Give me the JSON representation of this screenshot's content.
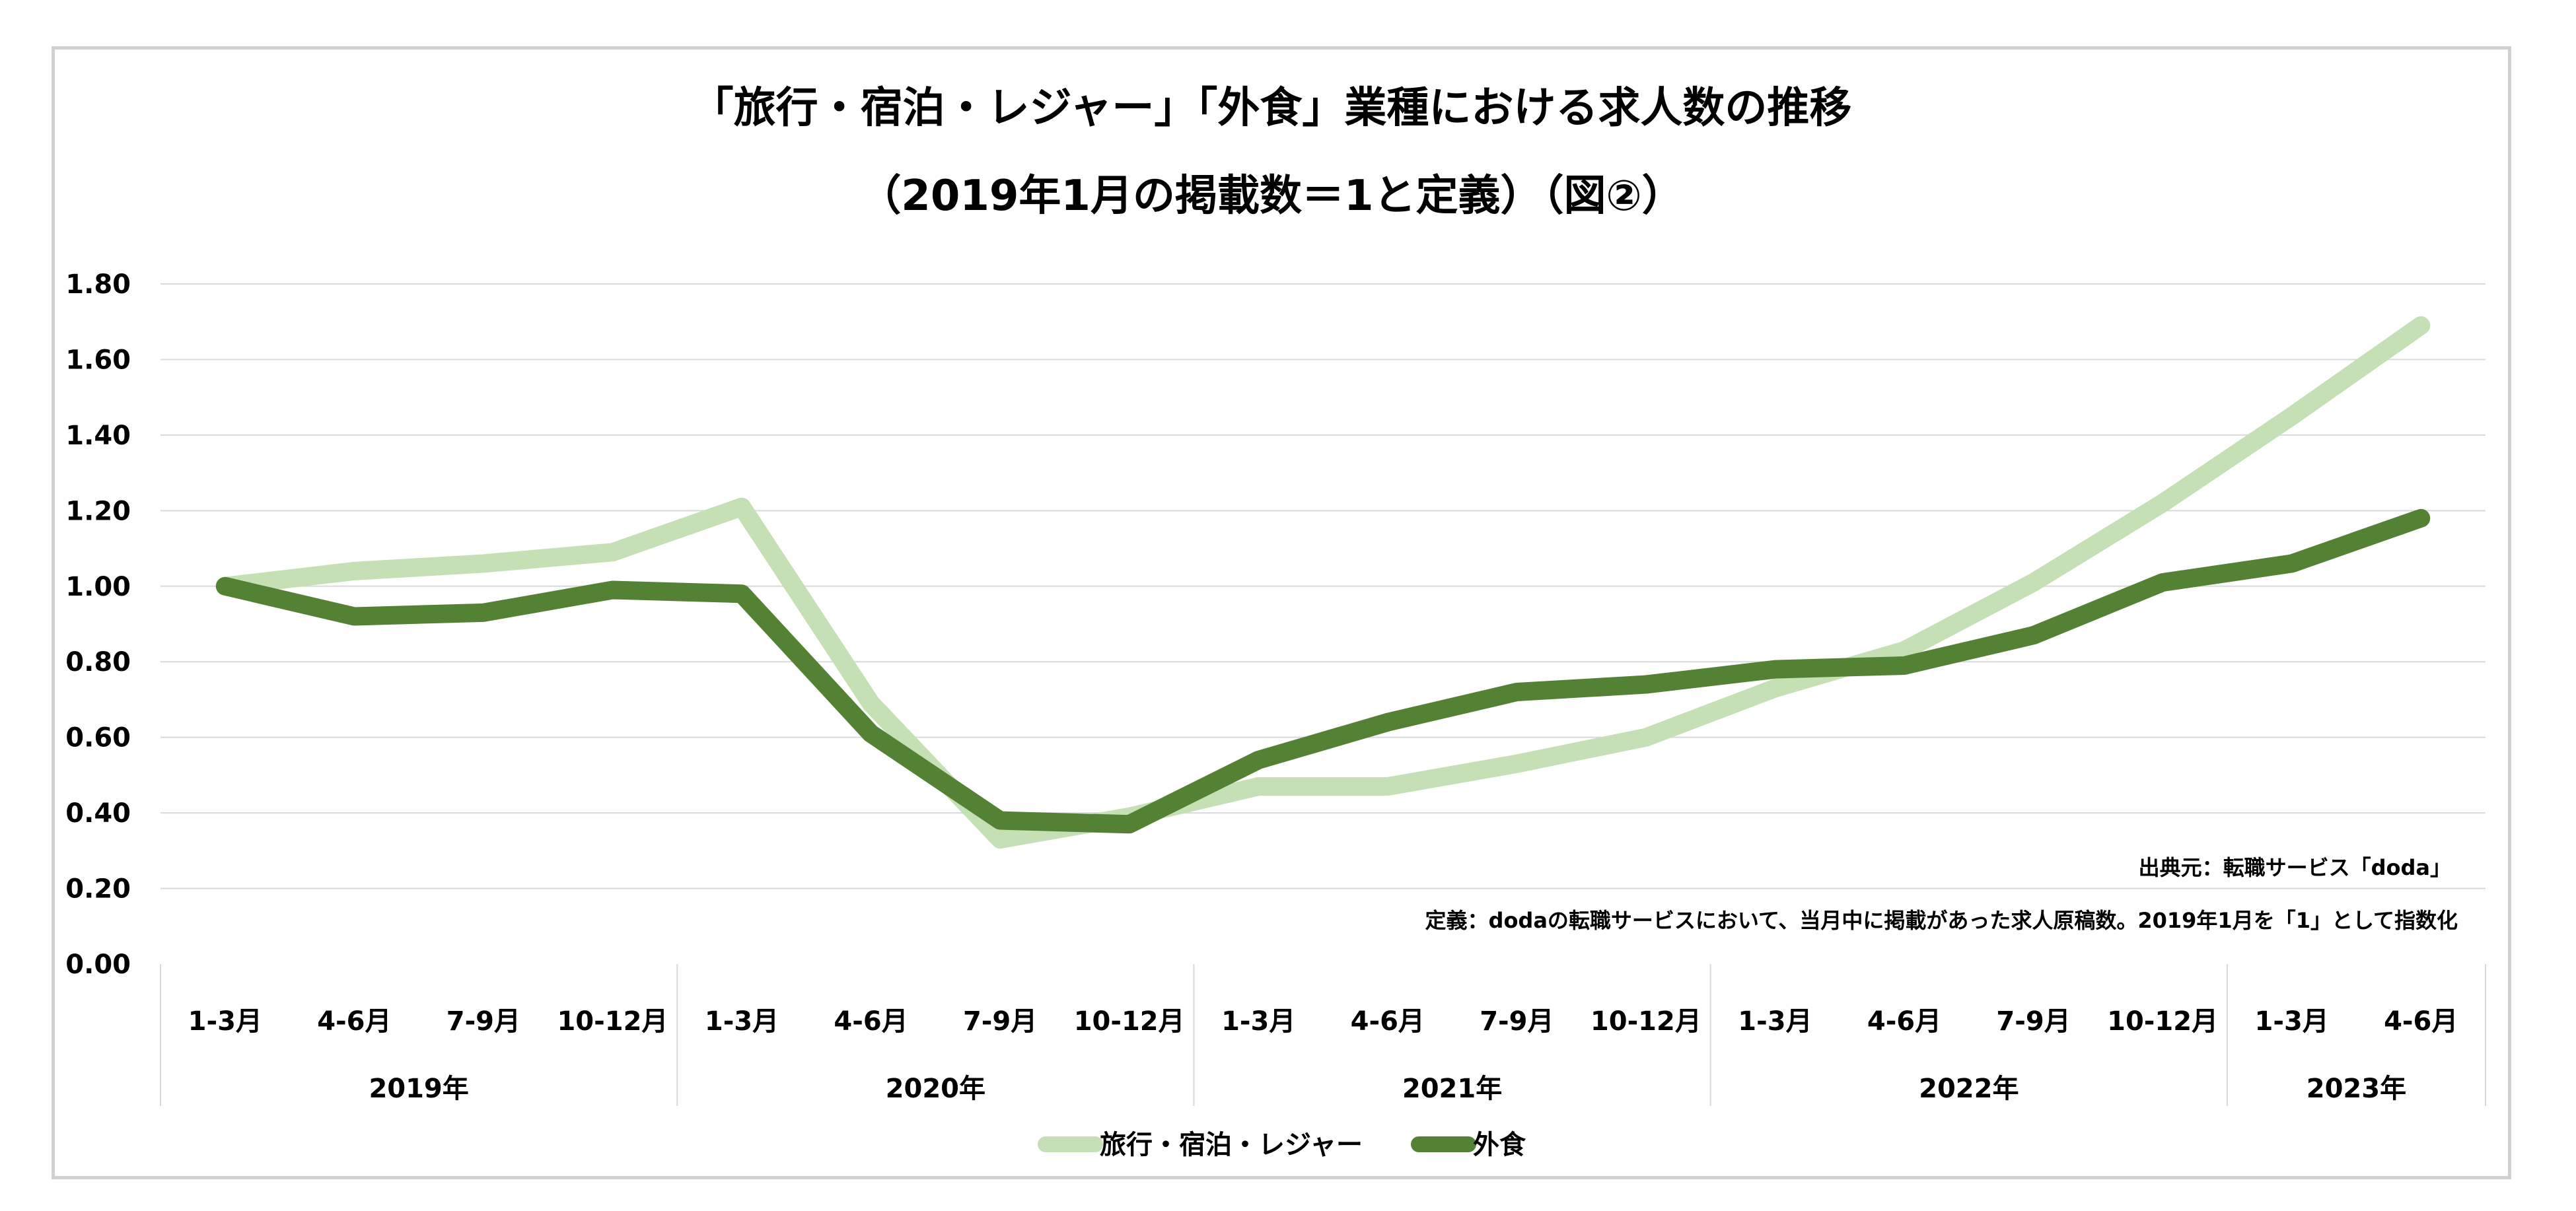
{
  "chart_data": {
    "type": "line",
    "title": "「旅行・宿泊・レジャー」「外食」業種における求人数の推移",
    "subtitle": "（2019年1月の掲載数＝1と定義）（図②）",
    "xlabel": "",
    "ylabel": "",
    "ylim": [
      0,
      1.8
    ],
    "yticks": [
      "0.00",
      "0.20",
      "0.40",
      "0.60",
      "0.80",
      "1.00",
      "1.20",
      "1.40",
      "1.60",
      "1.80"
    ],
    "grid": true,
    "legend_position": "bottom",
    "categories": [
      "1-3月",
      "4-6月",
      "7-9月",
      "10-12月",
      "1-3月",
      "4-6月",
      "7-9月",
      "10-12月",
      "1-3月",
      "4-6月",
      "7-9月",
      "10-12月",
      "1-3月",
      "4-6月",
      "7-9月",
      "10-12月",
      "1-3月",
      "4-6月"
    ],
    "year_groups": [
      {
        "label": "2019年",
        "count": 4
      },
      {
        "label": "2020年",
        "count": 4
      },
      {
        "label": "2021年",
        "count": 4
      },
      {
        "label": "2022年",
        "count": 4
      },
      {
        "label": "2023年",
        "count": 2
      }
    ],
    "series": [
      {
        "name": "旅行・宿泊・レジャー",
        "color": "#c5e0b4",
        "values": [
          1.0,
          1.04,
          1.06,
          1.09,
          1.21,
          0.69,
          0.33,
          0.39,
          0.47,
          0.47,
          0.53,
          0.6,
          0.73,
          0.83,
          1.01,
          1.22,
          1.45,
          1.69
        ]
      },
      {
        "name": "外食",
        "color": "#548235",
        "values": [
          1.0,
          0.92,
          0.93,
          0.99,
          0.98,
          0.61,
          0.38,
          0.37,
          0.54,
          0.64,
          0.72,
          0.74,
          0.78,
          0.79,
          0.87,
          1.01,
          1.06,
          1.18
        ]
      }
    ],
    "annotations": [
      "出典元：転職サービス「doda」",
      "定義：dodaの転職サービスにおいて、当月中に掲載があった求人原稿数。2019年1月を「1」として指数化"
    ]
  }
}
